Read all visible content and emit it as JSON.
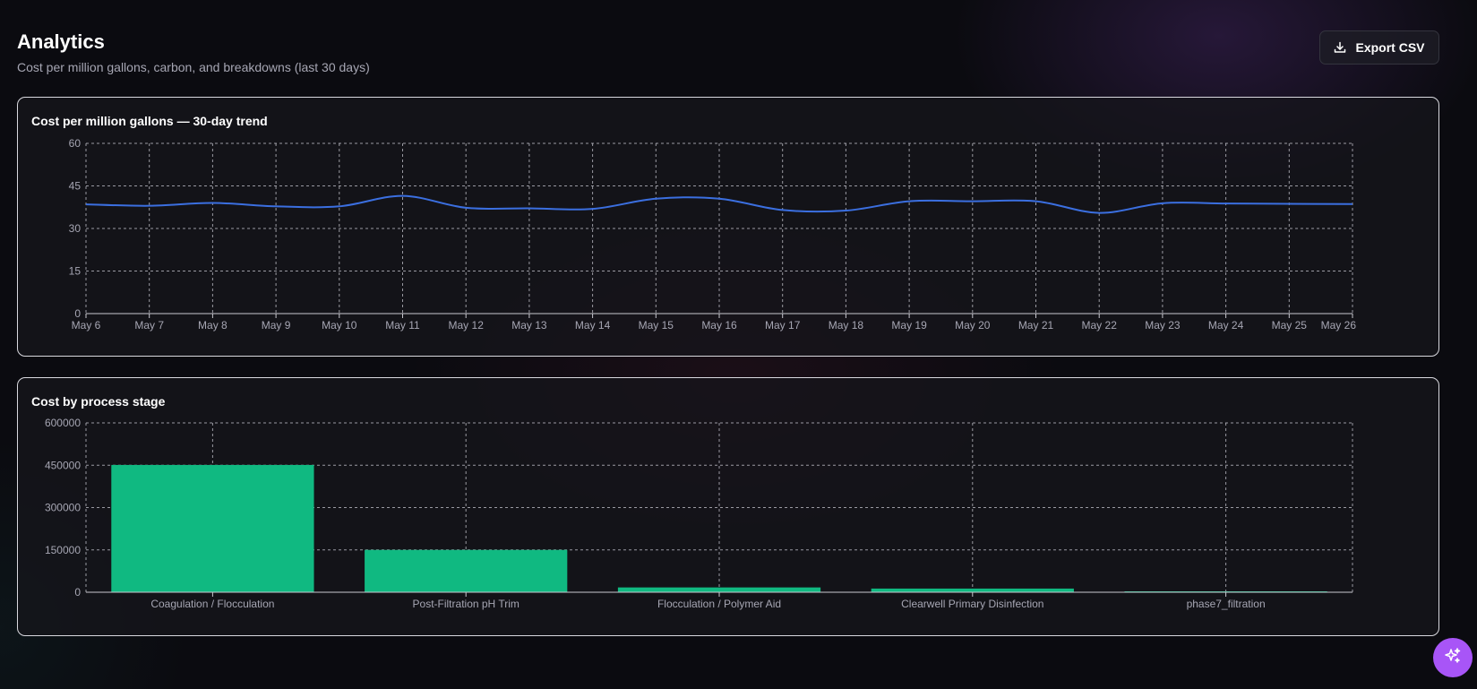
{
  "header": {
    "title": "Analytics",
    "subtitle": "Cost per million gallons, carbon, and breakdowns (last 30 days)"
  },
  "toolbar": {
    "export_label": "Export CSV",
    "export_icon": "download-icon"
  },
  "assistant_button": {
    "icon": "sparkles-icon"
  },
  "colors": {
    "line": "#3b6fe0",
    "bar": "#10b981",
    "grid": "#c8c8d0",
    "tick": "#a6a6b3"
  },
  "chart_data": [
    {
      "type": "line",
      "title": "Cost per million gallons — 30-day trend",
      "x": [
        "May 6",
        "May 7",
        "May 8",
        "May 9",
        "May 10",
        "May 11",
        "May 12",
        "May 13",
        "May 14",
        "May 15",
        "May 16",
        "May 17",
        "May 18",
        "May 19",
        "May 20",
        "May 21",
        "May 22",
        "May 23",
        "May 24",
        "May 25",
        "May 26"
      ],
      "series": [
        {
          "values": [
            38.5,
            38.0,
            39.0,
            37.8,
            37.8,
            41.5,
            37.3,
            37.1,
            36.9,
            40.5,
            40.5,
            36.5,
            36.3,
            39.6,
            39.6,
            39.6,
            35.5,
            38.9,
            38.8,
            38.7,
            38.6
          ]
        }
      ],
      "ylim": [
        0,
        60
      ],
      "yticks": [
        0,
        15,
        30,
        45,
        60
      ],
      "grid": true
    },
    {
      "type": "bar",
      "title": "Cost by process stage",
      "categories": [
        "Coagulation / Flocculation",
        "Post-Filtration pH Trim",
        "Flocculation / Polymer Aid",
        "Clearwell Primary Disinfection",
        "phase7_filtration"
      ],
      "values": [
        451000,
        150000,
        17000,
        13000,
        1000
      ],
      "ylim": [
        0,
        600000
      ],
      "yticks": [
        0,
        150000,
        300000,
        450000,
        600000
      ],
      "grid": true
    }
  ]
}
